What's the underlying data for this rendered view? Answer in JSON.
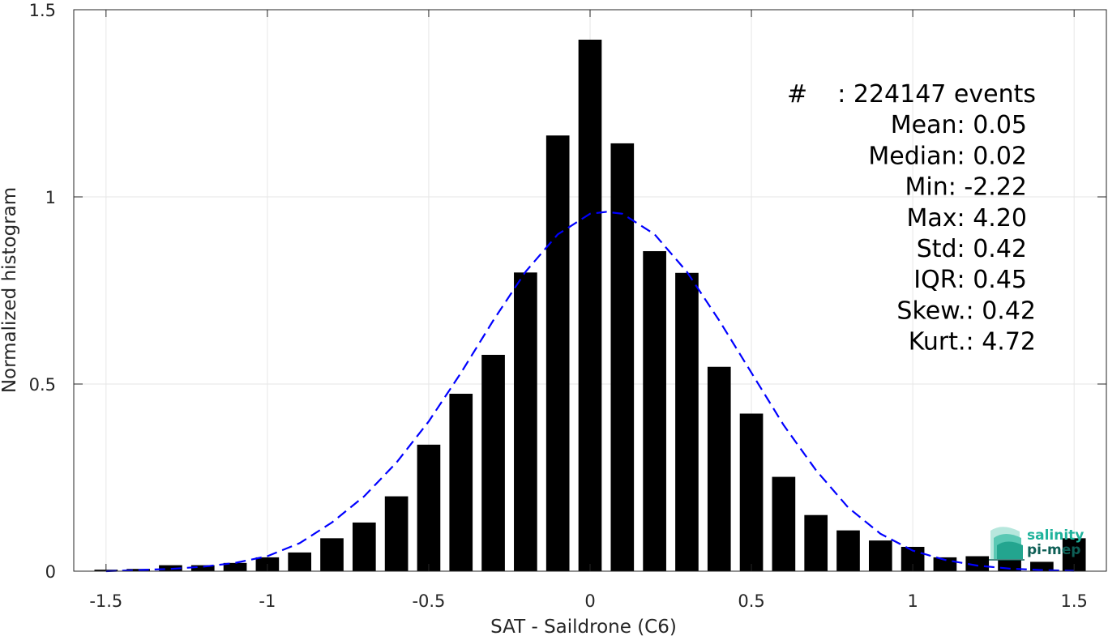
{
  "chart_data": {
    "type": "bar",
    "xlabel": "SAT - Saildrone (C6)",
    "ylabel": "Normalized histogram",
    "xlim": [
      -1.6,
      1.6
    ],
    "ylim": [
      0,
      1.5
    ],
    "xticks": [
      "-1.5",
      "-1",
      "-0.5",
      "0",
      "0.5",
      "1",
      "1.5"
    ],
    "yticks": [
      "0",
      "0.5",
      "1",
      "1.5"
    ],
    "grid": true,
    "bar_color": "#000000",
    "fit_color": "#0000ff",
    "series": [
      {
        "type": "bar",
        "x": [
          -1.5,
          -1.4,
          -1.3,
          -1.2,
          -1.1,
          -1.0,
          -0.9,
          -0.8,
          -0.7,
          -0.6,
          -0.5,
          -0.4,
          -0.3,
          -0.2,
          -0.1,
          0.0,
          0.1,
          0.2,
          0.3,
          0.4,
          0.5,
          0.6,
          0.7,
          0.8,
          0.9,
          1.0,
          1.1,
          1.2,
          1.3,
          1.4,
          1.5
        ],
        "values": [
          0.004,
          0.006,
          0.016,
          0.016,
          0.022,
          0.037,
          0.05,
          0.088,
          0.13,
          0.2,
          0.338,
          0.474,
          0.578,
          0.798,
          1.164,
          1.42,
          1.143,
          0.855,
          0.797,
          0.546,
          0.421,
          0.252,
          0.15,
          0.109,
          0.082,
          0.065,
          0.037,
          0.04,
          0.03,
          0.025,
          0.088
        ]
      },
      {
        "type": "line",
        "style": "dashed",
        "x": [
          -1.5,
          -1.4,
          -1.3,
          -1.2,
          -1.1,
          -1.0,
          -0.9,
          -0.8,
          -0.7,
          -0.6,
          -0.5,
          -0.4,
          -0.3,
          -0.2,
          -0.1,
          0.0,
          0.05,
          0.1,
          0.2,
          0.3,
          0.4,
          0.5,
          0.6,
          0.7,
          0.8,
          0.9,
          1.0,
          1.1,
          1.2,
          1.3,
          1.4,
          1.5
        ],
        "values": [
          0.0,
          0.003,
          0.006,
          0.012,
          0.022,
          0.04,
          0.075,
          0.13,
          0.2,
          0.29,
          0.4,
          0.53,
          0.67,
          0.8,
          0.9,
          0.955,
          0.96,
          0.955,
          0.9,
          0.8,
          0.67,
          0.53,
          0.39,
          0.27,
          0.17,
          0.1,
          0.055,
          0.03,
          0.015,
          0.007,
          0.003,
          0.001
        ]
      }
    ],
    "annotations": [
      {
        "label": "#  ",
        "value": ": 224147 events"
      },
      {
        "label": "Mean ",
        "value": ": 0.05"
      },
      {
        "label": "Median ",
        "value": ": 0.02"
      },
      {
        "label": "Min ",
        "value": ": -2.22"
      },
      {
        "label": "Max ",
        "value": ": 4.20"
      },
      {
        "label": "Std ",
        "value": ": 0.42"
      },
      {
        "label": "IQR ",
        "value": ": 0.45"
      },
      {
        "label": "Skew. ",
        "value": ": 0.42"
      },
      {
        "label": "Kurt. ",
        "value": ": 4.72"
      }
    ]
  },
  "logo": {
    "line1": "salinity",
    "line2": "pi-mep",
    "color": "#1fb39c",
    "dark_color": "#0e5f56"
  }
}
